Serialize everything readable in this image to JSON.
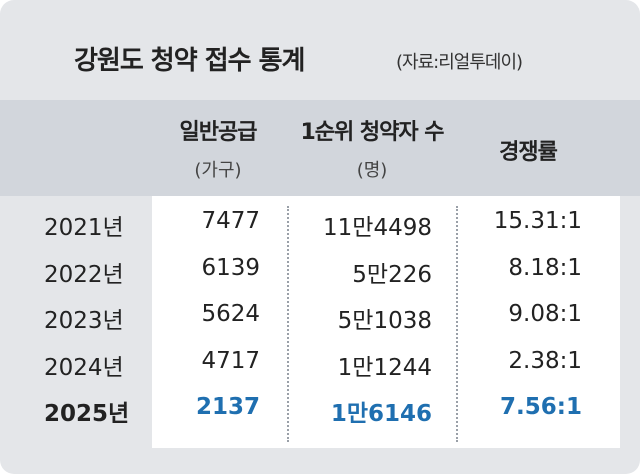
{
  "header": {
    "title": "강원도 청약 접수 통계",
    "source": "(자료:리얼투데이)"
  },
  "table": {
    "columns": [
      {
        "label": "일반공급",
        "unit": "(가구)"
      },
      {
        "label": "1순위 청약자 수",
        "unit": "(명)"
      },
      {
        "label": "경쟁률"
      }
    ],
    "rows": [
      [
        "2021년",
        "7477",
        "11만4498",
        "15.31:1"
      ],
      [
        "2022년",
        "6139",
        "5만226",
        "8.18:1"
      ],
      [
        "2023년",
        "5624",
        "5만1038",
        "9.08:1"
      ],
      [
        "2024년",
        "4717",
        "1만1244",
        "2.38:1"
      ],
      [
        "2025년",
        "2137",
        "1만6146",
        "7.56:1"
      ]
    ]
  }
}
